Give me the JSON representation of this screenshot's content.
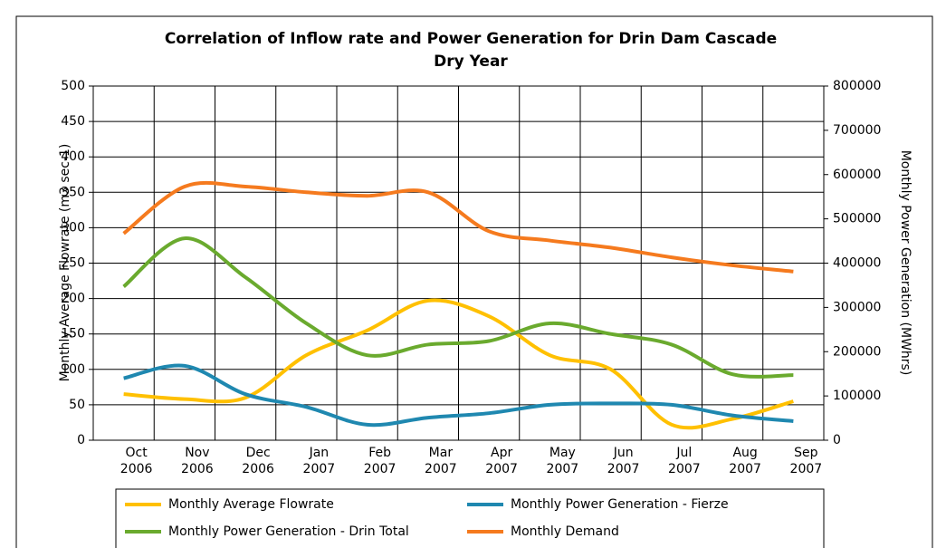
{
  "chart_data": {
    "type": "line",
    "title": "Correlation of Inflow rate and Power Generation for Drin Dam Cascade",
    "subtitle": "Dry Year",
    "y_label": "Monthly Average Flowrate (m3 sec-1)",
    "y2_label": "Monthly Power Generation (MWhrs)",
    "categories": [
      "Oct 2006",
      "Nov 2006",
      "Dec 2006",
      "Jan 2007",
      "Feb 2007",
      "Mar 2007",
      "Apr 2007",
      "May 2007",
      "Jun 2007",
      "Jul 2007",
      "Aug 2007",
      "Sep 2007"
    ],
    "ylim": [
      0,
      500
    ],
    "yticks": [
      0,
      50,
      100,
      150,
      200,
      250,
      300,
      350,
      400,
      450,
      500
    ],
    "y2lim": [
      0,
      800000
    ],
    "y2ticks": [
      0,
      100000,
      200000,
      300000,
      400000,
      500000,
      600000,
      700000,
      800000
    ],
    "grid": true,
    "series": [
      {
        "name": "Monthly Average Flowrate",
        "color": "#ffc000",
        "values": [
          65,
          58,
          60,
          120,
          155,
          197,
          175,
          120,
          100,
          22,
          30,
          55
        ]
      },
      {
        "name": "Monthly Power Generation - Fierze",
        "color": "#1f88b0",
        "axis": "y2",
        "values": [
          140000,
          168000,
          104000,
          75000,
          35000,
          51000,
          61000,
          80000,
          83000,
          80000,
          56000,
          43000
        ]
      },
      {
        "name": "Monthly Power Generation - Drin Total",
        "color": "#6aaa2e",
        "axis": "y2",
        "values": [
          347000,
          456000,
          368000,
          264000,
          192000,
          216000,
          224000,
          264000,
          240000,
          216000,
          149000,
          147000
        ]
      },
      {
        "name": "Monthly Demand",
        "color": "#f57a1e",
        "axis": "y2",
        "values": [
          467000,
          573000,
          573000,
          560000,
          552000,
          560000,
          472000,
          451000,
          435000,
          413000,
          395000,
          381000
        ]
      }
    ]
  }
}
